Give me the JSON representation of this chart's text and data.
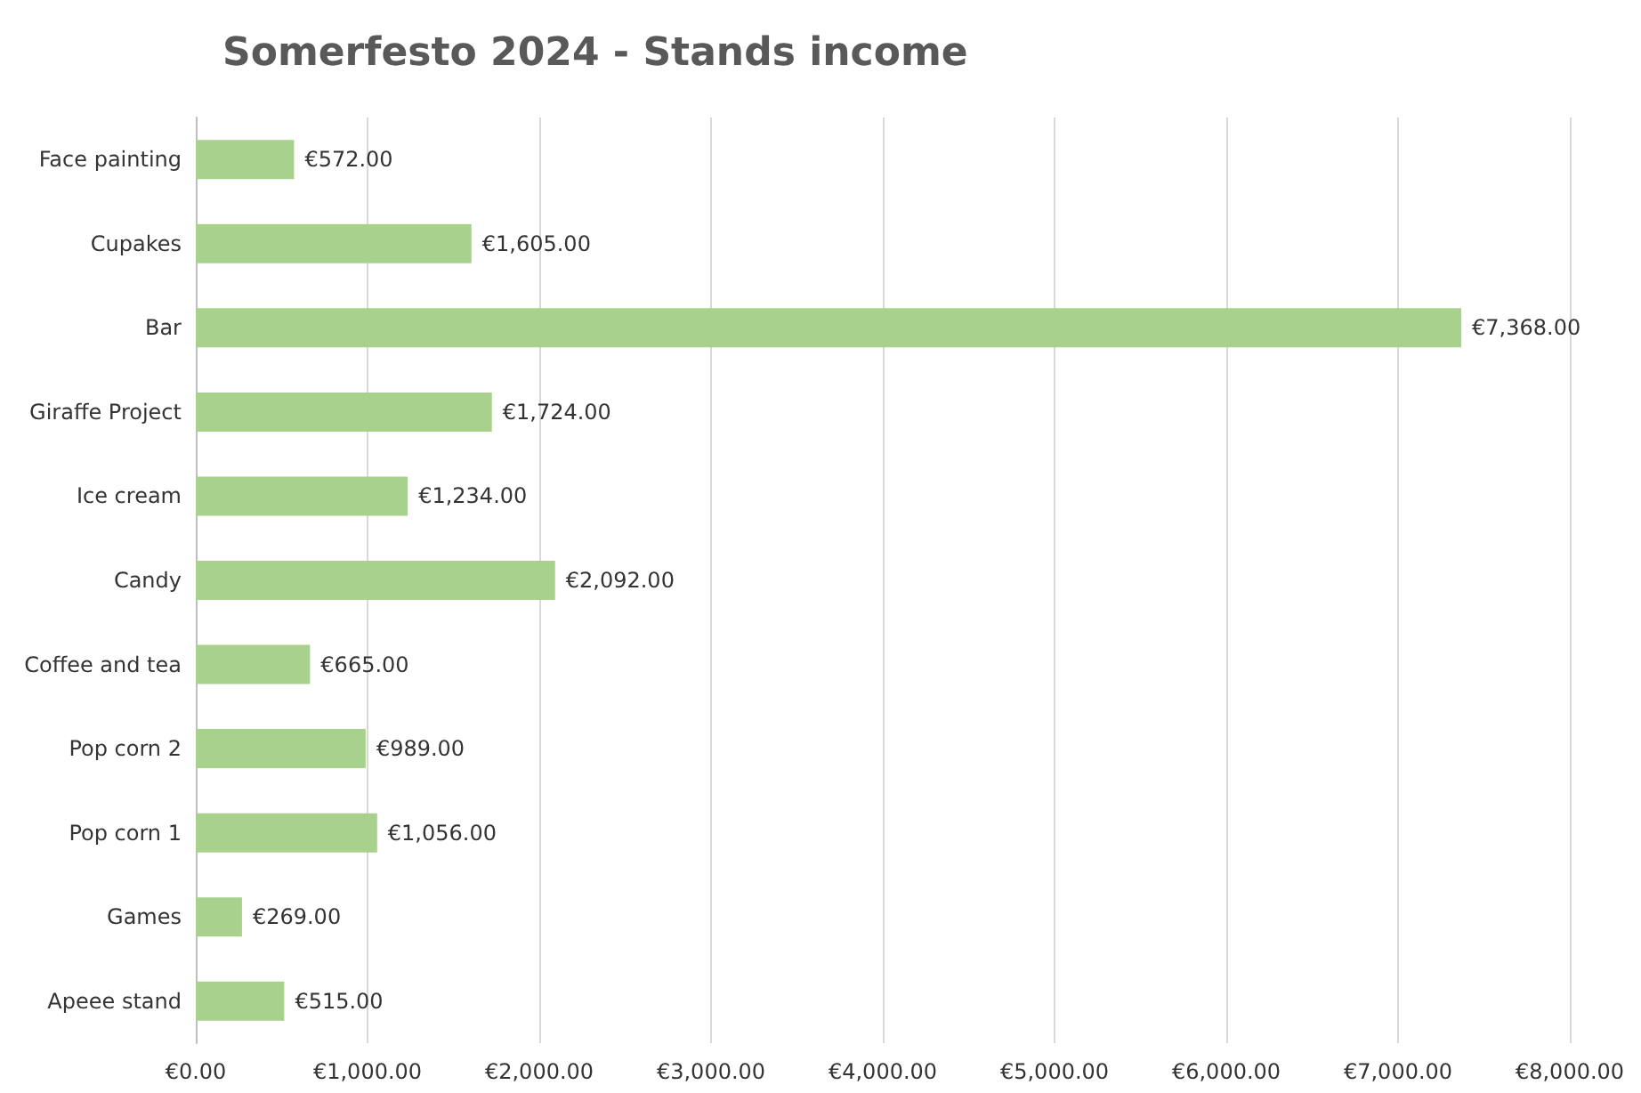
{
  "chart_data": {
    "type": "bar",
    "orientation": "horizontal",
    "title": "Somerfesto 2024 - Stands income",
    "categories": [
      "Face painting",
      "Cupakes",
      "Bar",
      "Giraffe Project",
      "Ice cream",
      "Candy",
      "Coffee and tea",
      "Pop corn 2",
      "Pop corn 1",
      "Games",
      "Apeee stand"
    ],
    "values": [
      572,
      1605,
      7368,
      1724,
      1234,
      2092,
      665,
      989,
      1056,
      269,
      515
    ],
    "value_labels": [
      "€572.00",
      "€1,605.00",
      "€7,368.00",
      "€1,724.00",
      "€1,234.00",
      "€2,092.00",
      "€665.00",
      "€989.00",
      "€1,056.00",
      "€269.00",
      "€515.00"
    ],
    "color": "#a9d18e",
    "xlim": [
      0,
      8000
    ],
    "xticks": [
      {
        "value": 0,
        "label": "€0.00"
      },
      {
        "value": 1000,
        "label": "€1,000.00"
      },
      {
        "value": 2000,
        "label": "€2,000.00"
      },
      {
        "value": 3000,
        "label": "€3,000.00"
      },
      {
        "value": 4000,
        "label": "€4,000.00"
      },
      {
        "value": 5000,
        "label": "€5,000.00"
      },
      {
        "value": 6000,
        "label": "€6,000.00"
      },
      {
        "value": 7000,
        "label": "€7,000.00"
      },
      {
        "value": 8000,
        "label": "€8,000.00"
      }
    ],
    "grid": "x"
  }
}
